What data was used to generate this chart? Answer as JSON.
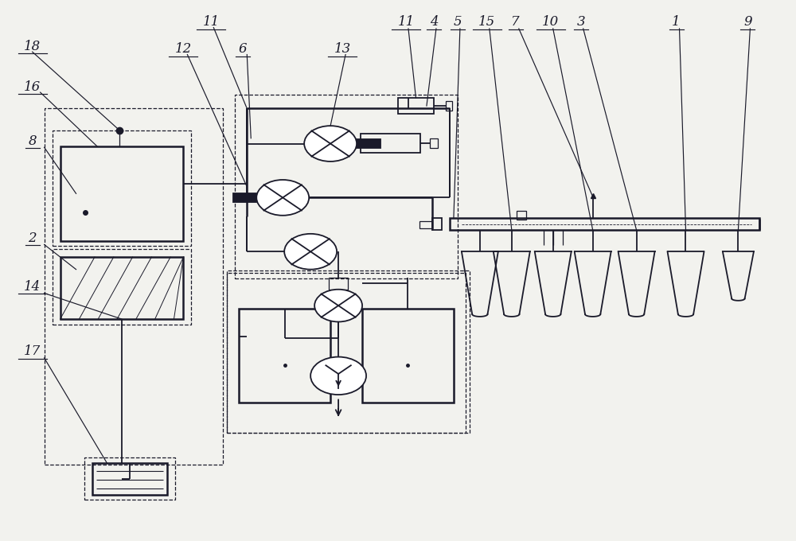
{
  "bg_color": "#f2f2ee",
  "line_color": "#1a1a2a",
  "fig_w": 10.0,
  "fig_h": 6.8,
  "dpi": 100,
  "label_font_size": 12,
  "label_color": "#1a1a2a"
}
